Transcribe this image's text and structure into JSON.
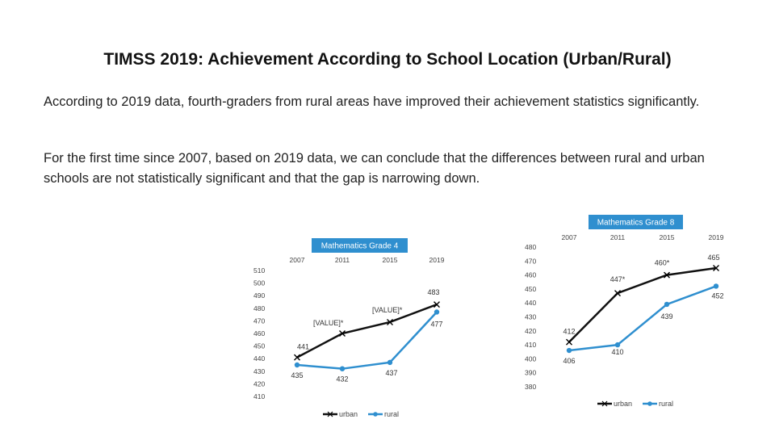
{
  "page": {
    "title": "TIMSS 2019: Achievement According to School Location (Urban/Rural)",
    "paragraph1": "According to 2019 data, fourth-graders from rural areas have improved their achievement statistics significantly.",
    "paragraph2": "For the first time since 2007, based on 2019 data, we can conclude that the differences between rural and urban schools are not statistically significant and that the gap is narrowing down."
  },
  "colors": {
    "urban": "#111111",
    "rural": "#2f8fcf",
    "title_bg": "#2f8fcf"
  },
  "chart_data": [
    {
      "type": "line",
      "title": "Mathematics Grade 4",
      "categories": [
        "2007",
        "2011",
        "2015",
        "2019"
      ],
      "ylim": [
        410,
        510
      ],
      "yticks": [
        410,
        420,
        430,
        440,
        450,
        460,
        470,
        480,
        490,
        500,
        510
      ],
      "series": [
        {
          "name": "urban",
          "values": [
            441,
            460,
            469,
            483
          ],
          "labels": [
            "441",
            "[VALUE]*",
            "[VALUE]*",
            "483"
          ],
          "marker": "x"
        },
        {
          "name": "rural",
          "values": [
            435,
            432,
            437,
            477
          ],
          "labels": [
            "435",
            "432",
            "437",
            "477"
          ],
          "marker": "circle"
        }
      ],
      "legend": "bottom"
    },
    {
      "type": "line",
      "title": "Mathematics Grade 8",
      "categories": [
        "2007",
        "2011",
        "2015",
        "2019"
      ],
      "ylim": [
        380,
        480
      ],
      "yticks": [
        380,
        390,
        400,
        410,
        420,
        430,
        440,
        450,
        460,
        470,
        480
      ],
      "series": [
        {
          "name": "urban",
          "values": [
            412,
            447,
            460,
            465
          ],
          "labels": [
            "412",
            "447*",
            "460*",
            "465"
          ],
          "marker": "x"
        },
        {
          "name": "rural",
          "values": [
            406,
            410,
            439,
            452
          ],
          "labels": [
            "406",
            "410",
            "439",
            "452"
          ],
          "marker": "circle"
        }
      ],
      "legend": "bottom-right"
    }
  ]
}
